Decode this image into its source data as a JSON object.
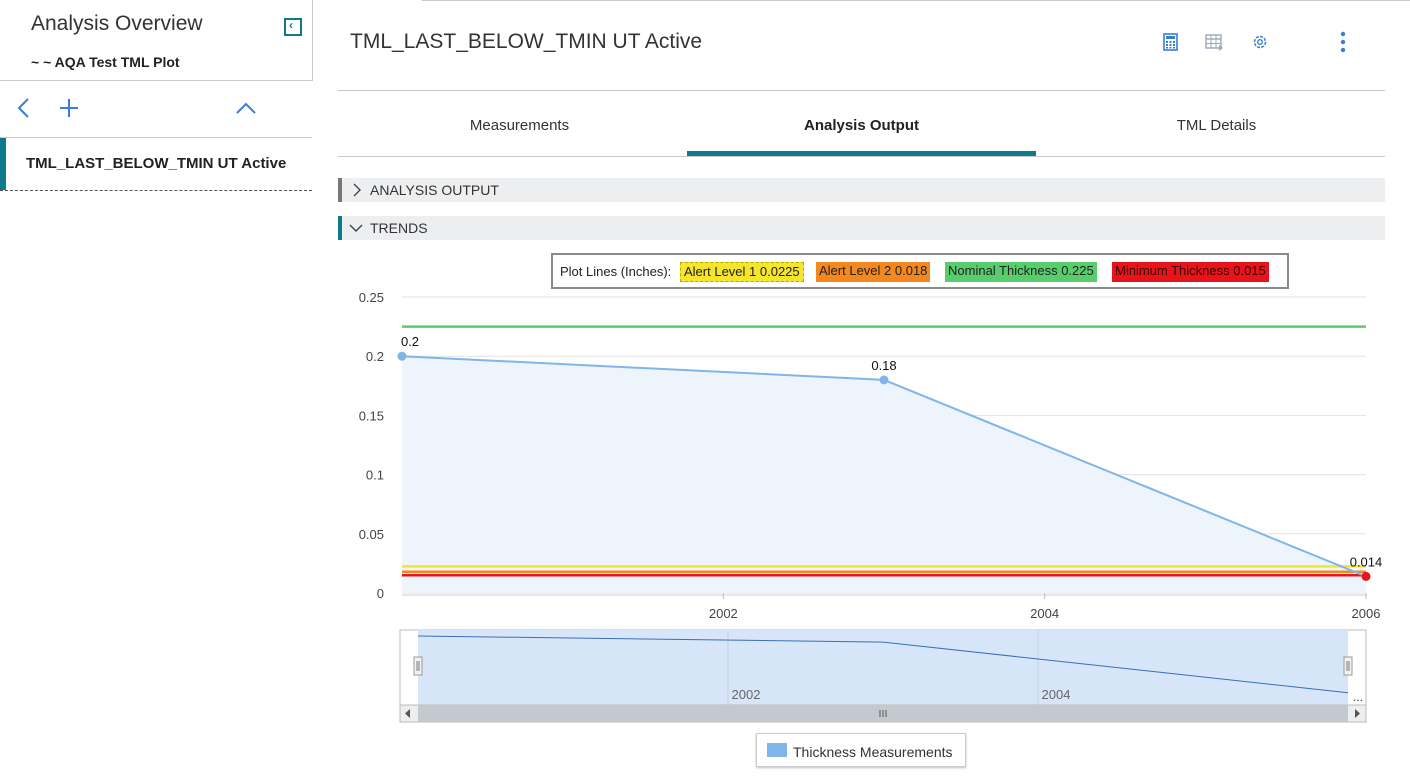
{
  "left": {
    "title": "Analysis Overview",
    "subtitle": "~ ~ AQA Test TML Plot",
    "tree_item": "TML_LAST_BELOW_TMIN UT Active"
  },
  "header": {
    "title": "TML_LAST_BELOW_TMIN UT Active"
  },
  "icons": [
    "calculator-icon",
    "table-icon",
    "gear-icon",
    "more-vertical-icon",
    "chevron-left-icon",
    "plus-icon",
    "chevron-up-icon"
  ],
  "tabs": [
    {
      "label": "Measurements",
      "active": false
    },
    {
      "label": "Analysis Output",
      "active": true
    },
    {
      "label": "TML Details",
      "active": false
    }
  ],
  "sections": {
    "analysis_output": "ANALYSIS OUTPUT",
    "trends": "TRENDS"
  },
  "plot_lines": {
    "label": "Plot Lines (Inches):",
    "items": [
      {
        "text": "Alert Level 1 0.0225",
        "color": "#f5e52b"
      },
      {
        "text": "Alert Level 2 0.018",
        "color": "#f5871f"
      },
      {
        "text": "Nominal Thickness 0.225",
        "color": "#58cd6d"
      },
      {
        "text": "Minimum Thickness 0.015",
        "color": "#e8141b"
      }
    ]
  },
  "chart_data": {
    "type": "line",
    "xlabel": "",
    "ylabel": "",
    "ylim": [
      0,
      0.25
    ],
    "yticks": [
      "0",
      "0.05",
      "0.1",
      "0.15",
      "0.2",
      "0.25"
    ],
    "xticks": [
      "2002",
      "2004",
      "2006"
    ],
    "xlim": [
      2000,
      2006
    ],
    "series": [
      {
        "name": "Thickness Measurements",
        "color": "#80b5ea",
        "x": [
          2000,
          2003,
          2006
        ],
        "y": [
          0.2,
          0.18,
          0.014
        ],
        "labels": [
          "0.2",
          "0.18",
          "0.014"
        ]
      }
    ],
    "reference_lines": [
      {
        "value": 0.225,
        "color": "#58cd6d"
      },
      {
        "value": 0.0225,
        "color": "#f5e52b"
      },
      {
        "value": 0.018,
        "color": "#f5871f"
      },
      {
        "value": 0.015,
        "color": "#e8141b"
      }
    ],
    "navigator": {
      "xticks": [
        "2002",
        "2004"
      ],
      "end_label": "..."
    },
    "legend": "Thickness Measurements",
    "grid": true
  }
}
